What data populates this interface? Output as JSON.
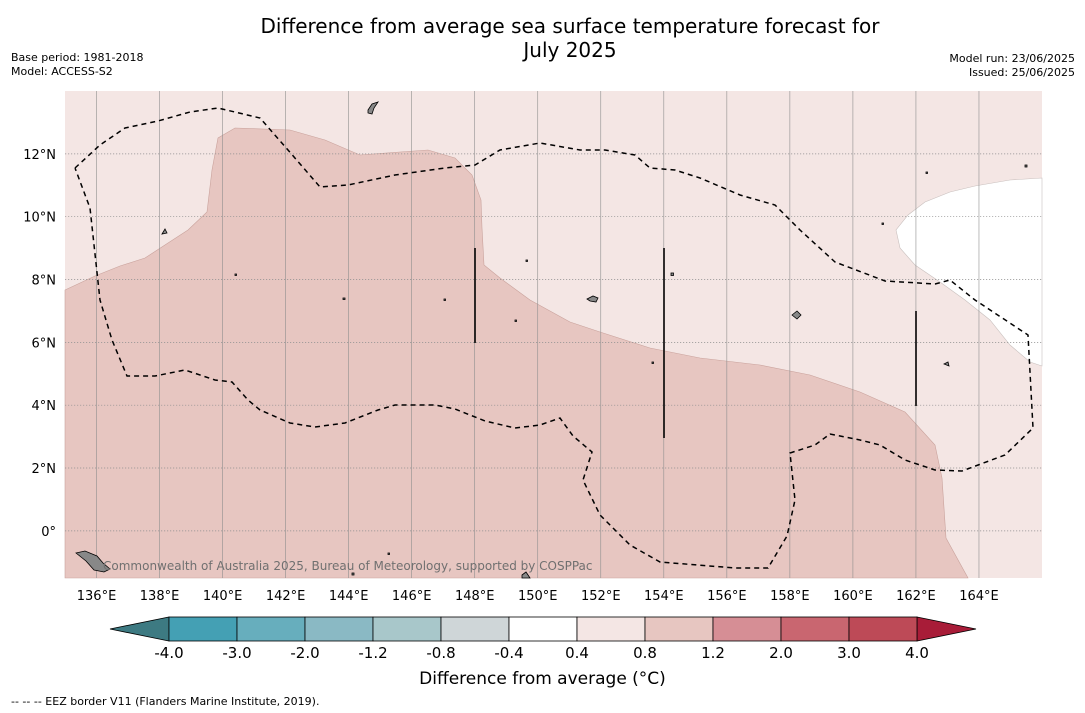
{
  "title_line1": "Difference from average sea surface temperature forecast for",
  "title_line2": "July 2025",
  "meta_left": {
    "base_period": "Base period: 1981-2018",
    "model": "Model: ACCESS-S2"
  },
  "meta_right": {
    "model_run": "Model run: 23/06/2025",
    "issued": "Issued: 25/06/2025"
  },
  "map": {
    "lon_range": [
      135,
      166
    ],
    "lat_range": [
      -1.5,
      14
    ],
    "lon_ticks": [
      {
        "value": 136,
        "label": "136°E"
      },
      {
        "value": 138,
        "label": "138°E"
      },
      {
        "value": 140,
        "label": "140°E"
      },
      {
        "value": 142,
        "label": "142°E"
      },
      {
        "value": 144,
        "label": "144°E"
      },
      {
        "value": 146,
        "label": "146°E"
      },
      {
        "value": 148,
        "label": "148°E"
      },
      {
        "value": 150,
        "label": "150°E"
      },
      {
        "value": 152,
        "label": "152°E"
      },
      {
        "value": 154,
        "label": "154°E"
      },
      {
        "value": 156,
        "label": "156°E"
      },
      {
        "value": 158,
        "label": "158°E"
      },
      {
        "value": 160,
        "label": "160°E"
      },
      {
        "value": 162,
        "label": "162°E"
      },
      {
        "value": 164,
        "label": "164°E"
      }
    ],
    "lat_ticks": [
      {
        "value": 12,
        "label": "12°N"
      },
      {
        "value": 10,
        "label": "10°N"
      },
      {
        "value": 8,
        "label": "8°N"
      },
      {
        "value": 6,
        "label": "6°N"
      },
      {
        "value": 4,
        "label": "4°N"
      },
      {
        "value": 2,
        "label": "2°N"
      },
      {
        "value": 0,
        "label": "0°"
      }
    ],
    "background_class_color": "#f4e6e4",
    "warm_region_color": "#e7c6c1",
    "neutral_region_color": "#ffffff",
    "land_color": "#888888",
    "copyright": "Commonwealth of Australia 2025, Bureau of Meteorology, supported by COSPPac"
  },
  "colorbar": {
    "ticks": [
      "-4.0",
      "-3.0",
      "-2.0",
      "-1.2",
      "-0.8",
      "-0.4",
      "0.4",
      "0.8",
      "1.2",
      "2.0",
      "3.0",
      "4.0"
    ],
    "under_color": "#3d7a82",
    "over_color": "#a81c38",
    "colors": [
      "#44a0b4",
      "#67aebd",
      "#8ab9c4",
      "#a8c7ca",
      "#cfd6d8",
      "#ffffff",
      "#f4e6e4",
      "#e7c6c1",
      "#d68e95",
      "#c96670",
      "#bd4a57"
    ],
    "label": "Difference from average (°C)"
  },
  "footnote": "-- -- -- EEZ border V11 (Flanders Marine Institute, 2019)."
}
